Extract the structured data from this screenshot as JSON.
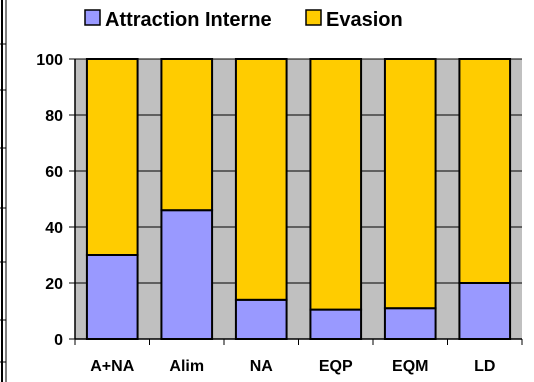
{
  "chart_data": {
    "type": "bar",
    "stacked": true,
    "categories": [
      "A+NA",
      "Alim",
      "NA",
      "EQP",
      "EQM",
      "LD"
    ],
    "series": [
      {
        "name": "Attraction Interne",
        "color": "#9999FF",
        "values": [
          30,
          46,
          14,
          10.5,
          11,
          20
        ]
      },
      {
        "name": "Evasion",
        "color": "#FFCC00",
        "values": [
          70,
          54,
          86,
          89.5,
          89,
          80
        ]
      }
    ],
    "ylim": [
      0,
      100
    ],
    "yticks": [
      0,
      20,
      40,
      60,
      80,
      100
    ],
    "grid": true,
    "legend_position": "top",
    "title": "",
    "xlabel": "",
    "ylabel": ""
  }
}
